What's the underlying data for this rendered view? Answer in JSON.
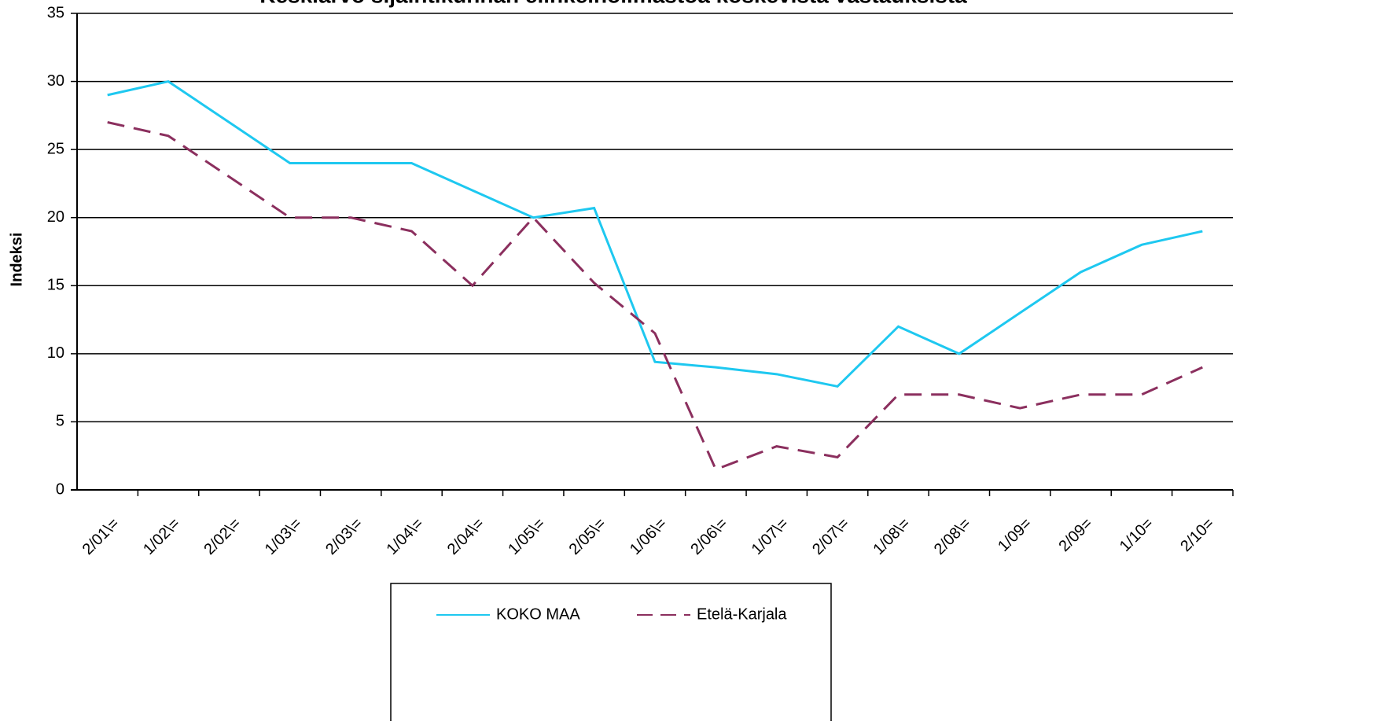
{
  "chart_data": {
    "type": "line",
    "title": "Keskiarvo sijaintikunnan elinkeinoilmastoa koskevista vastauksista",
    "y_label": "Indeksi",
    "categories": [
      "2/01\\=",
      "1/02\\=",
      "2/02\\=",
      "1/03\\=",
      "2/03\\=",
      "1/04\\=",
      "2/04\\=",
      "1/05\\=",
      "2/05\\=",
      "1/06\\=",
      "2/06\\=",
      "1/07\\=",
      "2/07\\=",
      "1/08\\=",
      "2/08\\=",
      "1/09=",
      "2/09=",
      "1/10=",
      "2/10="
    ],
    "series": [
      {
        "name": "KOKO MAA",
        "color": "#1ec8f0",
        "dash": "none",
        "values": [
          29,
          30,
          27,
          24,
          24,
          24,
          22,
          20,
          20.7,
          9.4,
          9,
          8.5,
          7.6,
          12,
          10,
          13,
          16,
          18,
          19
        ]
      },
      {
        "name": "Etelä-Karjala",
        "color": "#8b2f5e",
        "dash": "dashed",
        "values": [
          27,
          26,
          23,
          20,
          20,
          19,
          15,
          20,
          15.2,
          11.5,
          1.5,
          3.2,
          2.4,
          7,
          7,
          6,
          7,
          7,
          9
        ]
      }
    ],
    "ylim": [
      0,
      35
    ],
    "yticks": [
      0,
      5,
      10,
      15,
      20,
      25,
      30,
      35
    ],
    "grid": true,
    "legend": "bottom"
  }
}
